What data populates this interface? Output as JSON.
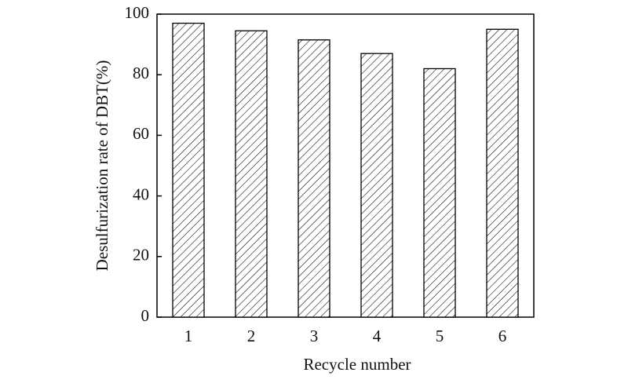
{
  "chart_data": {
    "type": "bar",
    "xlabel": "Recycle number",
    "ylabel": "Desulfurization rate of DBT(%)",
    "categories": [
      "1",
      "2",
      "3",
      "4",
      "5",
      "6"
    ],
    "values": [
      97,
      94.5,
      91.5,
      87,
      82,
      95
    ],
    "color": "#000000",
    "ylim": [
      0,
      100
    ],
    "yticks": [
      0,
      20,
      40,
      60,
      80,
      100
    ]
  }
}
